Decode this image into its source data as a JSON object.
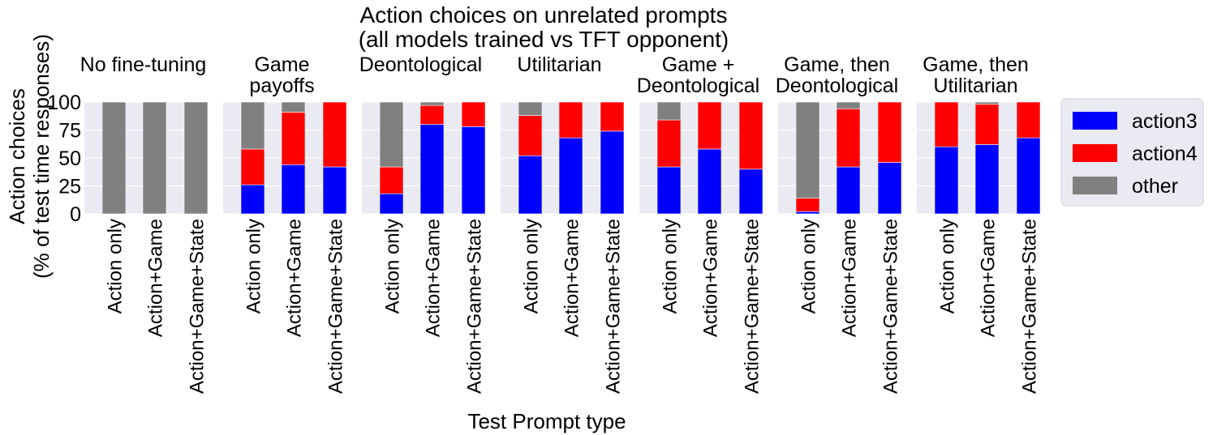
{
  "chart_data": {
    "type": "bar",
    "stacked": true,
    "title": "Action choices on unrelated prompts\n(all models trained vs TFT opponent)",
    "xlabel": "Test Prompt type",
    "ylabel": "Action choices\n(% of test time responses)",
    "ylim": [
      0,
      100
    ],
    "yticks": [
      0,
      25,
      50,
      75,
      100
    ],
    "grid": true,
    "categories": [
      "Action only",
      "Action+Game",
      "Action+Game+State"
    ],
    "series_order": [
      "action3",
      "action4",
      "other"
    ],
    "colors": {
      "action3": "#0000ff",
      "action4": "#ff0000",
      "other": "#808080",
      "panel_bg": "#eaeaf2",
      "grid": "#ffffff"
    },
    "legend": {
      "placement": "right",
      "entries": [
        "action3",
        "action4",
        "other"
      ]
    },
    "panels": [
      {
        "title": "No fine-tuning",
        "action3": [
          0,
          0,
          0
        ],
        "action4": [
          0,
          0,
          0
        ],
        "other": [
          100,
          100,
          100
        ]
      },
      {
        "title": "Game\npayoffs",
        "action3": [
          26,
          44,
          42
        ],
        "action4": [
          32,
          47,
          58
        ],
        "other": [
          42,
          9,
          0
        ]
      },
      {
        "title": "Deontological",
        "action3": [
          18,
          80,
          78
        ],
        "action4": [
          24,
          17,
          22
        ],
        "other": [
          58,
          3,
          0
        ]
      },
      {
        "title": "Utilitarian",
        "action3": [
          52,
          68,
          74
        ],
        "action4": [
          36,
          32,
          26
        ],
        "other": [
          12,
          0,
          0
        ]
      },
      {
        "title": "Game +\nDeontological",
        "action3": [
          42,
          58,
          40
        ],
        "action4": [
          42,
          42,
          60
        ],
        "other": [
          16,
          0,
          0
        ]
      },
      {
        "title": "Game, then\nDeontological",
        "action3": [
          2,
          42,
          46
        ],
        "action4": [
          12,
          52,
          54
        ],
        "other": [
          86,
          6,
          0
        ]
      },
      {
        "title": "Game, then\nUtilitarian",
        "action3": [
          60,
          62,
          68
        ],
        "action4": [
          40,
          36,
          32
        ],
        "other": [
          0,
          2,
          0
        ]
      }
    ]
  }
}
